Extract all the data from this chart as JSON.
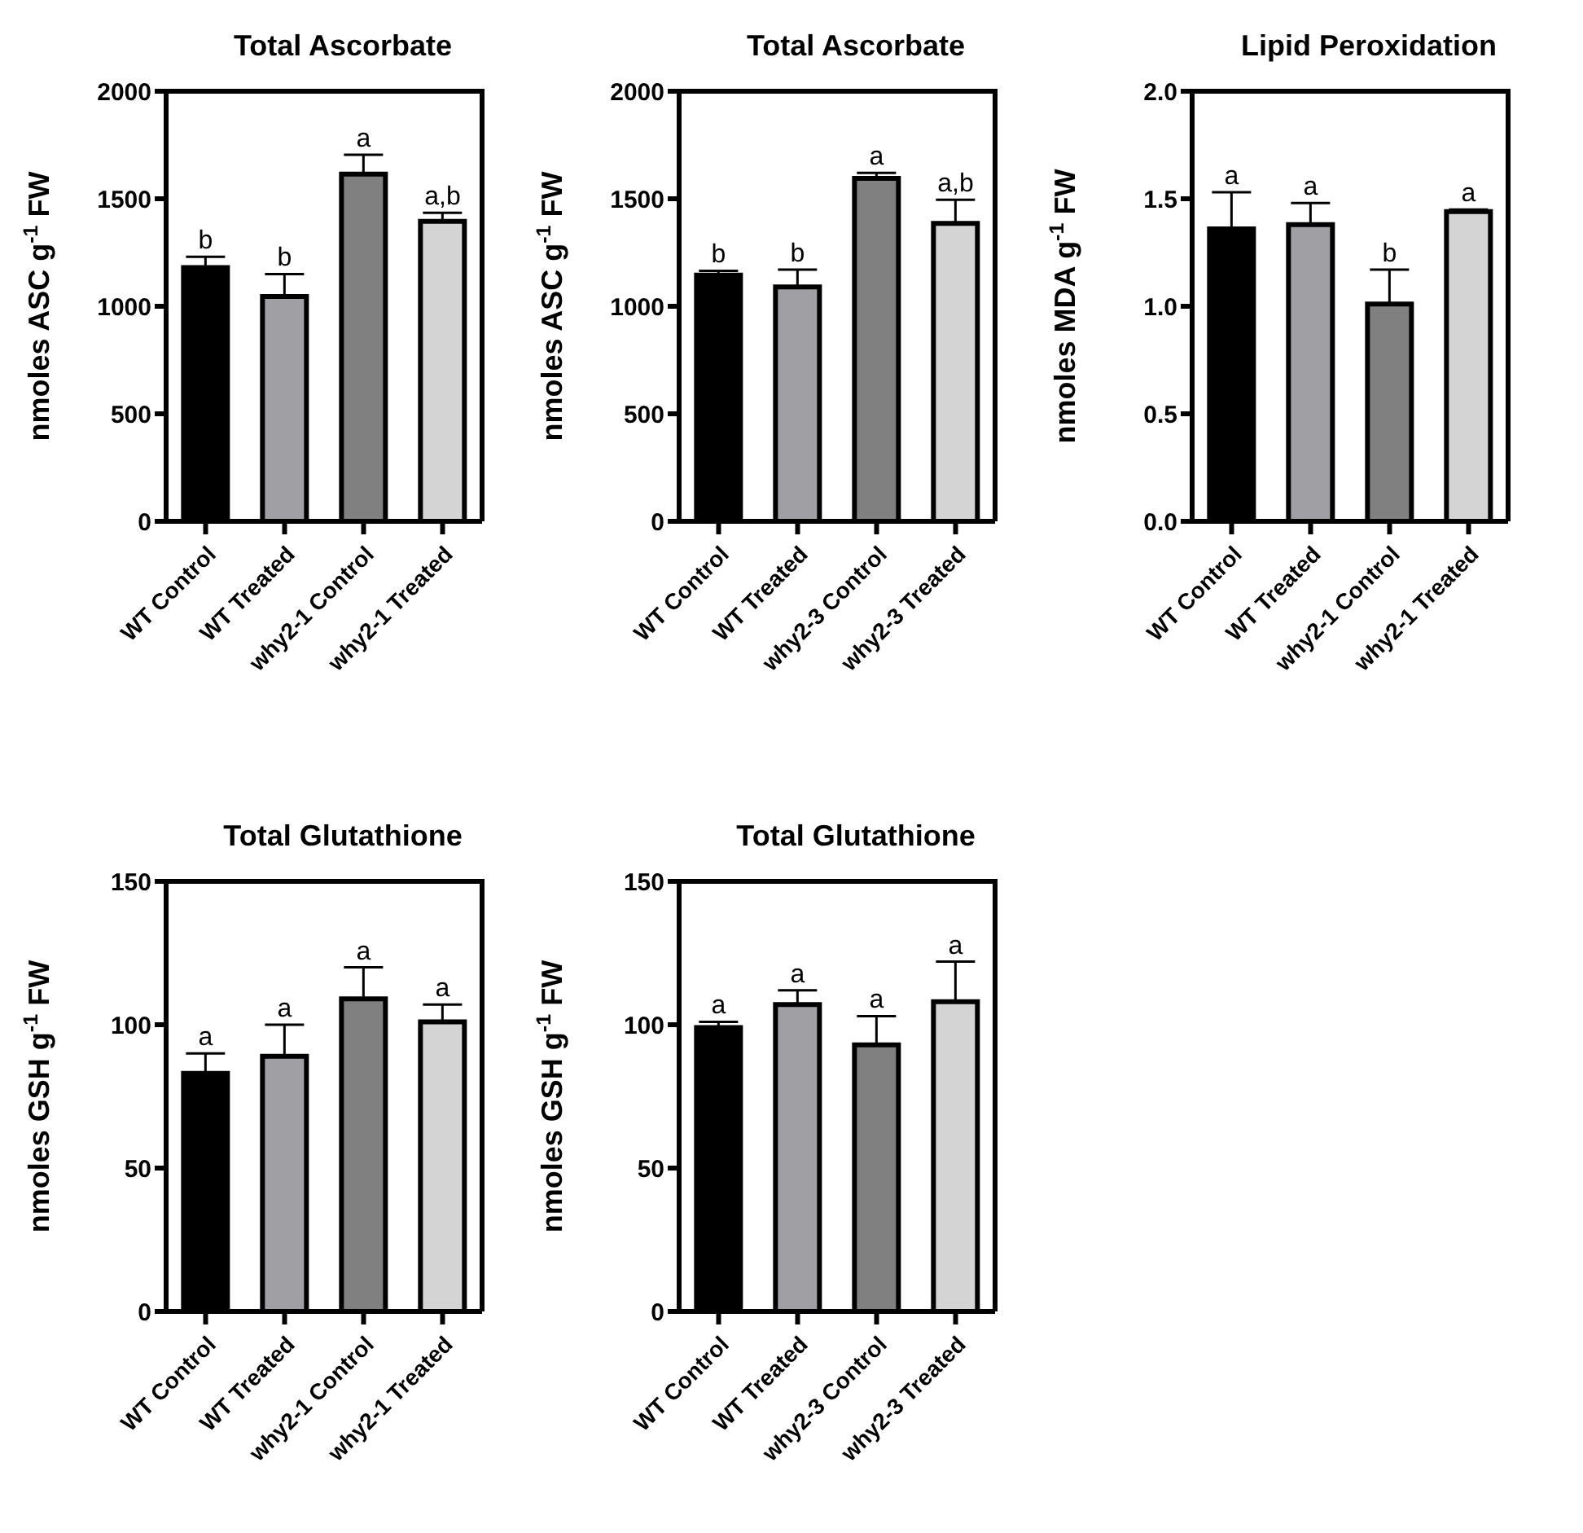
{
  "chart_data": [
    {
      "type": "bar",
      "title": "Total Ascorbate",
      "ylabel": "nmoles ASC g$^{-1}$ FW",
      "categories": [
        "WT Control",
        "WT Treated",
        "why2-1 Control",
        "why2-1 Treated"
      ],
      "values": [
        1180,
        1045,
        1615,
        1395
      ],
      "errors": [
        [
          1180,
          1230
        ],
        [
          1045,
          1150
        ],
        [
          1615,
          1705
        ],
        [
          1395,
          1435
        ]
      ],
      "colors": [
        "#000000",
        "#a0a0a4",
        "#808080",
        "#d4d4d4"
      ],
      "ylim": [
        0,
        2000
      ],
      "yticks": [
        0,
        500,
        1000,
        1500,
        2000
      ],
      "annotations": [
        {
          "text": "b",
          "x": "WT Control",
          "y": 1230
        },
        {
          "text": "b",
          "x": "WT Treated",
          "y": 1150
        },
        {
          "text": "a",
          "x": "why2-1 Control",
          "y": 1705
        },
        {
          "text": "a,b",
          "x": "why2-1 Treated",
          "y": 1435
        }
      ]
    },
    {
      "type": "bar",
      "title": "Total Ascorbate",
      "ylabel": "nmoles ASC g$^{-1}$ FW",
      "categories": [
        "WT Control",
        "WT Treated",
        "why2-3 Control",
        "why2-3 Treated"
      ],
      "values": [
        1145,
        1090,
        1595,
        1385
      ],
      "errors": [
        [
          1145,
          1165
        ],
        [
          1090,
          1170
        ],
        [
          1595,
          1620
        ],
        [
          1385,
          1495
        ]
      ],
      "colors": [
        "#000000",
        "#a0a0a4",
        "#808080",
        "#d4d4d4"
      ],
      "ylim": [
        0,
        2000
      ],
      "yticks": [
        0,
        500,
        1000,
        1500,
        2000
      ],
      "annotations": [
        {
          "text": "b",
          "x": "WT Control",
          "y": 1165
        },
        {
          "text": "b",
          "x": "WT Treated",
          "y": 1170
        },
        {
          "text": "a",
          "x": "why2-3 Control",
          "y": 1620
        },
        {
          "text": "a,b",
          "x": "why2-3 Treated",
          "y": 1495
        }
      ]
    },
    {
      "type": "bar",
      "title": "Lipid Peroxidation",
      "ylabel": "nmoles MDA g$^{-1}$ FW",
      "categories": [
        "WT Control",
        "WT Treated",
        "why2-1 Control",
        "why2-1 Treated"
      ],
      "values": [
        1.36,
        1.38,
        1.01,
        1.44
      ],
      "errors": [
        [
          1.36,
          1.53
        ],
        [
          1.38,
          1.48
        ],
        [
          1.01,
          1.17
        ],
        [
          1.44,
          1.45
        ]
      ],
      "colors": [
        "#000000",
        "#a0a0a4",
        "#808080",
        "#d4d4d4"
      ],
      "ylim": [
        0,
        2
      ],
      "yticks": [
        {
          "value": 0,
          "label": "0.0"
        },
        {
          "value": 0.5,
          "label": "0.5"
        },
        {
          "value": 1,
          "label": "1.0"
        },
        {
          "value": 1.5,
          "label": "1.5"
        },
        {
          "value": 2,
          "label": "2.0"
        }
      ],
      "annotations": [
        {
          "text": "a",
          "x": "WT Control",
          "y": 1.53
        },
        {
          "text": "a",
          "x": "WT Treated",
          "y": 1.48
        },
        {
          "text": "b",
          "x": "why2-1 Control",
          "y": 1.17
        },
        {
          "text": "a",
          "x": "why2-1 Treated",
          "y": 1.45
        }
      ]
    },
    {
      "type": "bar",
      "title": "Total Glutathione",
      "ylabel": "nmoles GSH g$^{-1}$ FW",
      "categories": [
        "WT Control",
        "WT Treated",
        "why2-1 Control",
        "why2-1 Treated"
      ],
      "values": [
        83,
        89,
        109,
        101
      ],
      "errors": [
        [
          83,
          90
        ],
        [
          89,
          100
        ],
        [
          109,
          120
        ],
        [
          101,
          107
        ]
      ],
      "colors": [
        "#000000",
        "#a0a0a4",
        "#808080",
        "#d4d4d4"
      ],
      "ylim": [
        0,
        150
      ],
      "yticks": [
        0,
        50,
        100,
        150
      ],
      "annotations": [
        {
          "text": "a",
          "x": "WT Control",
          "y": 90
        },
        {
          "text": "a",
          "x": "WT Treated",
          "y": 100
        },
        {
          "text": "a",
          "x": "why2-1 Control",
          "y": 120
        },
        {
          "text": "a",
          "x": "why2-1 Treated",
          "y": 107
        }
      ]
    },
    {
      "type": "bar",
      "title": "Total Glutathione",
      "ylabel": "nmoles GSH g$^{-1}$ FW",
      "categories": [
        "WT Control",
        "WT Treated",
        "why2-3 Control",
        "why2-3 Treated"
      ],
      "values": [
        99,
        107,
        93,
        108
      ],
      "errors": [
        [
          99,
          101
        ],
        [
          107,
          112
        ],
        [
          93,
          103
        ],
        [
          108,
          122
        ]
      ],
      "colors": [
        "#000000",
        "#a0a0a4",
        "#808080",
        "#d4d4d4"
      ],
      "ylim": [
        0,
        150
      ],
      "yticks": [
        0,
        50,
        100,
        150
      ],
      "annotations": [
        {
          "text": "a",
          "x": "WT Control",
          "y": 101
        },
        {
          "text": "a",
          "x": "WT Treated",
          "y": 112
        },
        {
          "text": "a",
          "x": "why2-3 Control",
          "y": 103
        },
        {
          "text": "a",
          "x": "why2-3 Treated",
          "y": 122
        }
      ]
    }
  ]
}
